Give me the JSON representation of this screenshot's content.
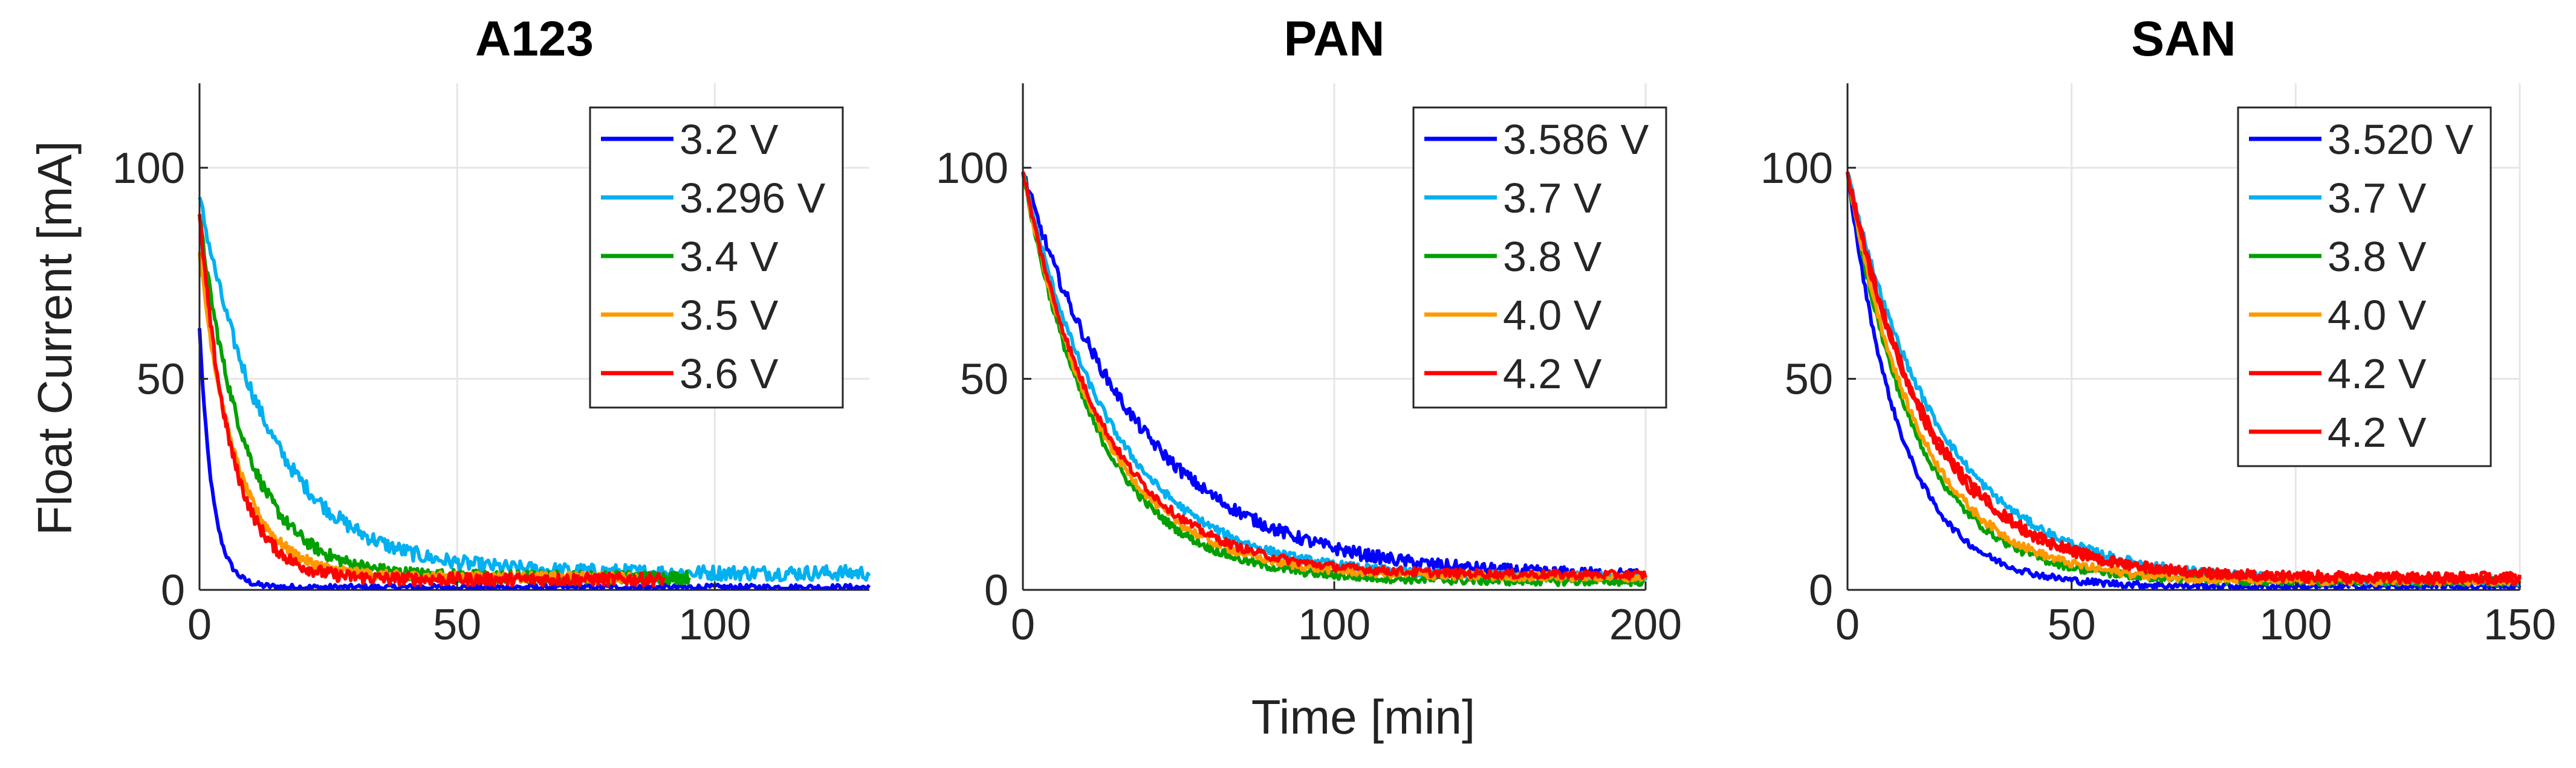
{
  "figure": {
    "ylabel": "Float Current [mA]",
    "xlabel": "Time [min]"
  },
  "chart_data": [
    {
      "type": "line",
      "title": "A123",
      "xlim": [
        0,
        130
      ],
      "ylim": [
        0,
        120
      ],
      "xticks": [
        0,
        50,
        100
      ],
      "yticks": [
        0,
        50,
        100
      ],
      "grid": true,
      "legend_position": "top-right",
      "series": [
        {
          "name": "3.2 V",
          "color": "#0000ff",
          "start": 62,
          "tau": 2.5,
          "floor": 0.6,
          "noise": 0.7,
          "end": 130
        },
        {
          "name": "3.296 V",
          "color": "#00b0f0",
          "start": 93,
          "tau": 14,
          "floor": 4,
          "noise": 1.8,
          "end": 130
        },
        {
          "name": "3.4 V",
          "color": "#00a000",
          "start": 88,
          "tau": 9,
          "floor": 3,
          "noise": 1.5,
          "end": 95
        },
        {
          "name": "3.5 V",
          "color": "#ff9900",
          "start": 80,
          "tau": 7,
          "floor": 3,
          "noise": 1.2,
          "end": 85
        },
        {
          "name": "3.6 V",
          "color": "#ff0000",
          "start": 89,
          "tau": 6,
          "floor": 2.5,
          "noise": 1.5,
          "end": 90
        }
      ]
    },
    {
      "type": "line",
      "title": "PAN",
      "xlim": [
        0,
        200
      ],
      "ylim": [
        0,
        120
      ],
      "xticks": [
        0,
        100,
        200
      ],
      "yticks": [
        0,
        50,
        100
      ],
      "grid": true,
      "legend_position": "top-right",
      "series": [
        {
          "name": "3.586 V",
          "color": "#0000ff",
          "start": 99,
          "tau": 38,
          "floor": 3,
          "noise": 1.5,
          "end": 200
        },
        {
          "name": "3.7 V",
          "color": "#00b0f0",
          "start": 99,
          "tau": 29,
          "floor": 3,
          "noise": 1.0,
          "end": 200
        },
        {
          "name": "3.8 V",
          "color": "#00a000",
          "start": 99,
          "tau": 24,
          "floor": 2,
          "noise": 1.0,
          "end": 200
        },
        {
          "name": "4.0 V",
          "color": "#ff9900",
          "start": 99,
          "tau": 25,
          "floor": 3,
          "noise": 1.0,
          "end": 200
        },
        {
          "name": "4.2 V",
          "color": "#ff0000",
          "start": 99,
          "tau": 26,
          "floor": 3.5,
          "noise": 1.0,
          "end": 200
        }
      ]
    },
    {
      "type": "line",
      "title": "SAN",
      "xlim": [
        0,
        150
      ],
      "ylim": [
        0,
        120
      ],
      "xticks": [
        0,
        50,
        100,
        150
      ],
      "yticks": [
        0,
        50,
        100
      ],
      "grid": true,
      "legend_position": "top-right",
      "series": [
        {
          "name": "3.520 V",
          "color": "#0000ff",
          "start": 99,
          "tau": 12,
          "floor": 0.8,
          "noise": 0.8,
          "end": 150
        },
        {
          "name": "3.7 V",
          "color": "#00b0f0",
          "start": 99,
          "tau": 21,
          "floor": 2,
          "noise": 1.0,
          "end": 150
        },
        {
          "name": "3.8 V",
          "color": "#00a000",
          "start": 99,
          "tau": 15,
          "floor": 2,
          "noise": 1.0,
          "end": 150
        },
        {
          "name": "4.0 V",
          "color": "#ff9900",
          "start": 99,
          "tau": 16,
          "floor": 2,
          "noise": 1.0,
          "end": 150
        },
        {
          "name": "4.2 V",
          "color": "#ff0000",
          "start": 99,
          "tau": 19,
          "floor": 2.5,
          "noise": 1.2,
          "end": 150
        },
        {
          "name": "4.2 V",
          "color": "#ff0000",
          "start": 99,
          "tau": 18,
          "floor": 3,
          "noise": 1.2,
          "end": 150
        }
      ]
    }
  ]
}
